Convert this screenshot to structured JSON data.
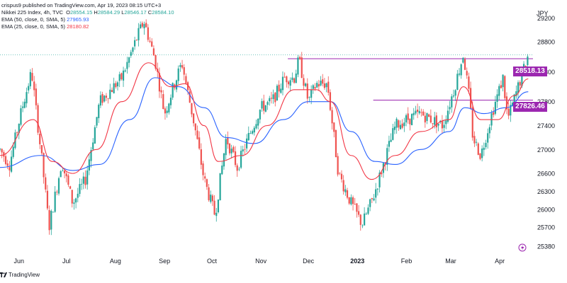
{
  "header": {
    "published": "crispus9 published on TradingView.com, Apr 19, 2023 08:15 UTC+3",
    "symbol": "Nikkei 225 Index, 4h, TVC",
    "ohlc": {
      "o_label": "O",
      "o": "28554.15",
      "h_label": "H",
      "h": "28584.29",
      "l_label": "L",
      "l": "28546.17",
      "c_label": "C",
      "c": "28584.10"
    },
    "ema50_label": "EMA (50, close, 0, SMA, 5)",
    "ema50_value": "27965.93",
    "ema25_label": "EMA (25, close, 0, SMA, 5)",
    "ema25_value": "28180.82"
  },
  "footer": {
    "brand": "TradingView"
  },
  "colors": {
    "up": "#26a69a",
    "down": "#ef5350",
    "ema50": "#2962ff",
    "ema25": "#f23645",
    "level": "#9c27b0",
    "currentLine": "#26a69a"
  },
  "chart_data": {
    "type": "candlestick",
    "currency": "JPY",
    "y_axis_ticks": [
      29200,
      28800,
      28300,
      27800,
      27400,
      27000,
      26600,
      26300,
      26000,
      25700,
      25380
    ],
    "x_axis_ticks": [
      "Jun",
      "Jul",
      "Aug",
      "Sep",
      "Oct",
      "Nov",
      "Dec",
      "2023",
      "Feb",
      "Mar",
      "Apr"
    ],
    "horizontal_levels": [
      {
        "label": "28518.13",
        "value": 28518.13
      },
      {
        "label": "27826.46",
        "value": 27826.46
      }
    ],
    "current_price": 28584.1,
    "path_points": [
      {
        "date": "2022-05-20",
        "value": 27000
      },
      {
        "date": "2022-05-26",
        "value": 26750
      },
      {
        "date": "2022-06-03",
        "value": 27700
      },
      {
        "date": "2022-06-09",
        "value": 28300
      },
      {
        "date": "2022-06-16",
        "value": 26700
      },
      {
        "date": "2022-06-20",
        "value": 25700
      },
      {
        "date": "2022-06-28",
        "value": 26800
      },
      {
        "date": "2022-07-05",
        "value": 26100
      },
      {
        "date": "2022-07-13",
        "value": 26500
      },
      {
        "date": "2022-07-22",
        "value": 27800
      },
      {
        "date": "2022-08-05",
        "value": 28200
      },
      {
        "date": "2022-08-15",
        "value": 28900
      },
      {
        "date": "2022-08-19",
        "value": 29150
      },
      {
        "date": "2022-08-26",
        "value": 28500
      },
      {
        "date": "2022-09-01",
        "value": 27600
      },
      {
        "date": "2022-09-06",
        "value": 28000
      },
      {
        "date": "2022-09-12",
        "value": 28450
      },
      {
        "date": "2022-09-20",
        "value": 27400
      },
      {
        "date": "2022-09-26",
        "value": 26500
      },
      {
        "date": "2022-10-03",
        "value": 25900
      },
      {
        "date": "2022-10-10",
        "value": 27200
      },
      {
        "date": "2022-10-17",
        "value": 26700
      },
      {
        "date": "2022-10-24",
        "value": 27200
      },
      {
        "date": "2022-11-01",
        "value": 27700
      },
      {
        "date": "2022-11-08",
        "value": 27800
      },
      {
        "date": "2022-11-16",
        "value": 28200
      },
      {
        "date": "2022-11-22",
        "value": 28200
      },
      {
        "date": "2022-11-25",
        "value": 28500
      },
      {
        "date": "2022-12-01",
        "value": 27800
      },
      {
        "date": "2022-12-06",
        "value": 28100
      },
      {
        "date": "2022-12-13",
        "value": 28100
      },
      {
        "date": "2022-12-20",
        "value": 26600
      },
      {
        "date": "2022-12-28",
        "value": 26100
      },
      {
        "date": "2023-01-04",
        "value": 25750
      },
      {
        "date": "2023-01-11",
        "value": 26200
      },
      {
        "date": "2023-01-18",
        "value": 26800
      },
      {
        "date": "2023-01-25",
        "value": 27400
      },
      {
        "date": "2023-02-01",
        "value": 27500
      },
      {
        "date": "2023-02-10",
        "value": 27600
      },
      {
        "date": "2023-02-17",
        "value": 27500
      },
      {
        "date": "2023-02-24",
        "value": 27400
      },
      {
        "date": "2023-03-03",
        "value": 28000
      },
      {
        "date": "2023-03-09",
        "value": 28600
      },
      {
        "date": "2023-03-13",
        "value": 27800
      },
      {
        "date": "2023-03-15",
        "value": 27200
      },
      {
        "date": "2023-03-20",
        "value": 26900
      },
      {
        "date": "2023-03-27",
        "value": 27600
      },
      {
        "date": "2023-04-03",
        "value": 28200
      },
      {
        "date": "2023-04-06",
        "value": 27500
      },
      {
        "date": "2023-04-12",
        "value": 28000
      },
      {
        "date": "2023-04-19",
        "value": 28584
      }
    ],
    "ema25_points": [
      {
        "date": "2022-05-20",
        "value": 26900
      },
      {
        "date": "2022-06-10",
        "value": 27500
      },
      {
        "date": "2022-06-22",
        "value": 26800
      },
      {
        "date": "2022-07-05",
        "value": 26600
      },
      {
        "date": "2022-07-20",
        "value": 27000
      },
      {
        "date": "2022-08-05",
        "value": 27800
      },
      {
        "date": "2022-08-22",
        "value": 28450
      },
      {
        "date": "2022-09-05",
        "value": 28050
      },
      {
        "date": "2022-09-14",
        "value": 28100
      },
      {
        "date": "2022-09-26",
        "value": 27400
      },
      {
        "date": "2022-10-05",
        "value": 26800
      },
      {
        "date": "2022-10-20",
        "value": 26900
      },
      {
        "date": "2022-11-05",
        "value": 27400
      },
      {
        "date": "2022-11-22",
        "value": 28000
      },
      {
        "date": "2022-12-06",
        "value": 28000
      },
      {
        "date": "2022-12-15",
        "value": 27800
      },
      {
        "date": "2022-12-28",
        "value": 26900
      },
      {
        "date": "2023-01-10",
        "value": 26500
      },
      {
        "date": "2023-01-25",
        "value": 26900
      },
      {
        "date": "2023-02-10",
        "value": 27300
      },
      {
        "date": "2023-02-28",
        "value": 27500
      },
      {
        "date": "2023-03-09",
        "value": 28050
      },
      {
        "date": "2023-03-20",
        "value": 27500
      },
      {
        "date": "2023-03-31",
        "value": 27500
      },
      {
        "date": "2023-04-10",
        "value": 27900
      },
      {
        "date": "2023-04-19",
        "value": 28180.82
      }
    ],
    "ema50_points": [
      {
        "date": "2022-05-20",
        "value": 26700
      },
      {
        "date": "2022-06-15",
        "value": 26900
      },
      {
        "date": "2022-07-05",
        "value": 26650
      },
      {
        "date": "2022-07-22",
        "value": 26750
      },
      {
        "date": "2022-08-10",
        "value": 27500
      },
      {
        "date": "2022-08-26",
        "value": 28200
      },
      {
        "date": "2022-09-10",
        "value": 28050
      },
      {
        "date": "2022-09-26",
        "value": 27700
      },
      {
        "date": "2022-10-10",
        "value": 27200
      },
      {
        "date": "2022-10-28",
        "value": 27100
      },
      {
        "date": "2022-11-15",
        "value": 27500
      },
      {
        "date": "2022-12-01",
        "value": 27800
      },
      {
        "date": "2022-12-15",
        "value": 27800
      },
      {
        "date": "2022-12-28",
        "value": 27300
      },
      {
        "date": "2023-01-12",
        "value": 26800
      },
      {
        "date": "2023-01-25",
        "value": 26750
      },
      {
        "date": "2023-02-10",
        "value": 27000
      },
      {
        "date": "2023-02-28",
        "value": 27300
      },
      {
        "date": "2023-03-10",
        "value": 27700
      },
      {
        "date": "2023-03-22",
        "value": 27600
      },
      {
        "date": "2023-04-05",
        "value": 27700
      },
      {
        "date": "2023-04-19",
        "value": 27965.93
      }
    ],
    "xlim": [
      "2022-05-20",
      "2023-04-22"
    ],
    "ylim": [
      25300,
      29500
    ]
  }
}
